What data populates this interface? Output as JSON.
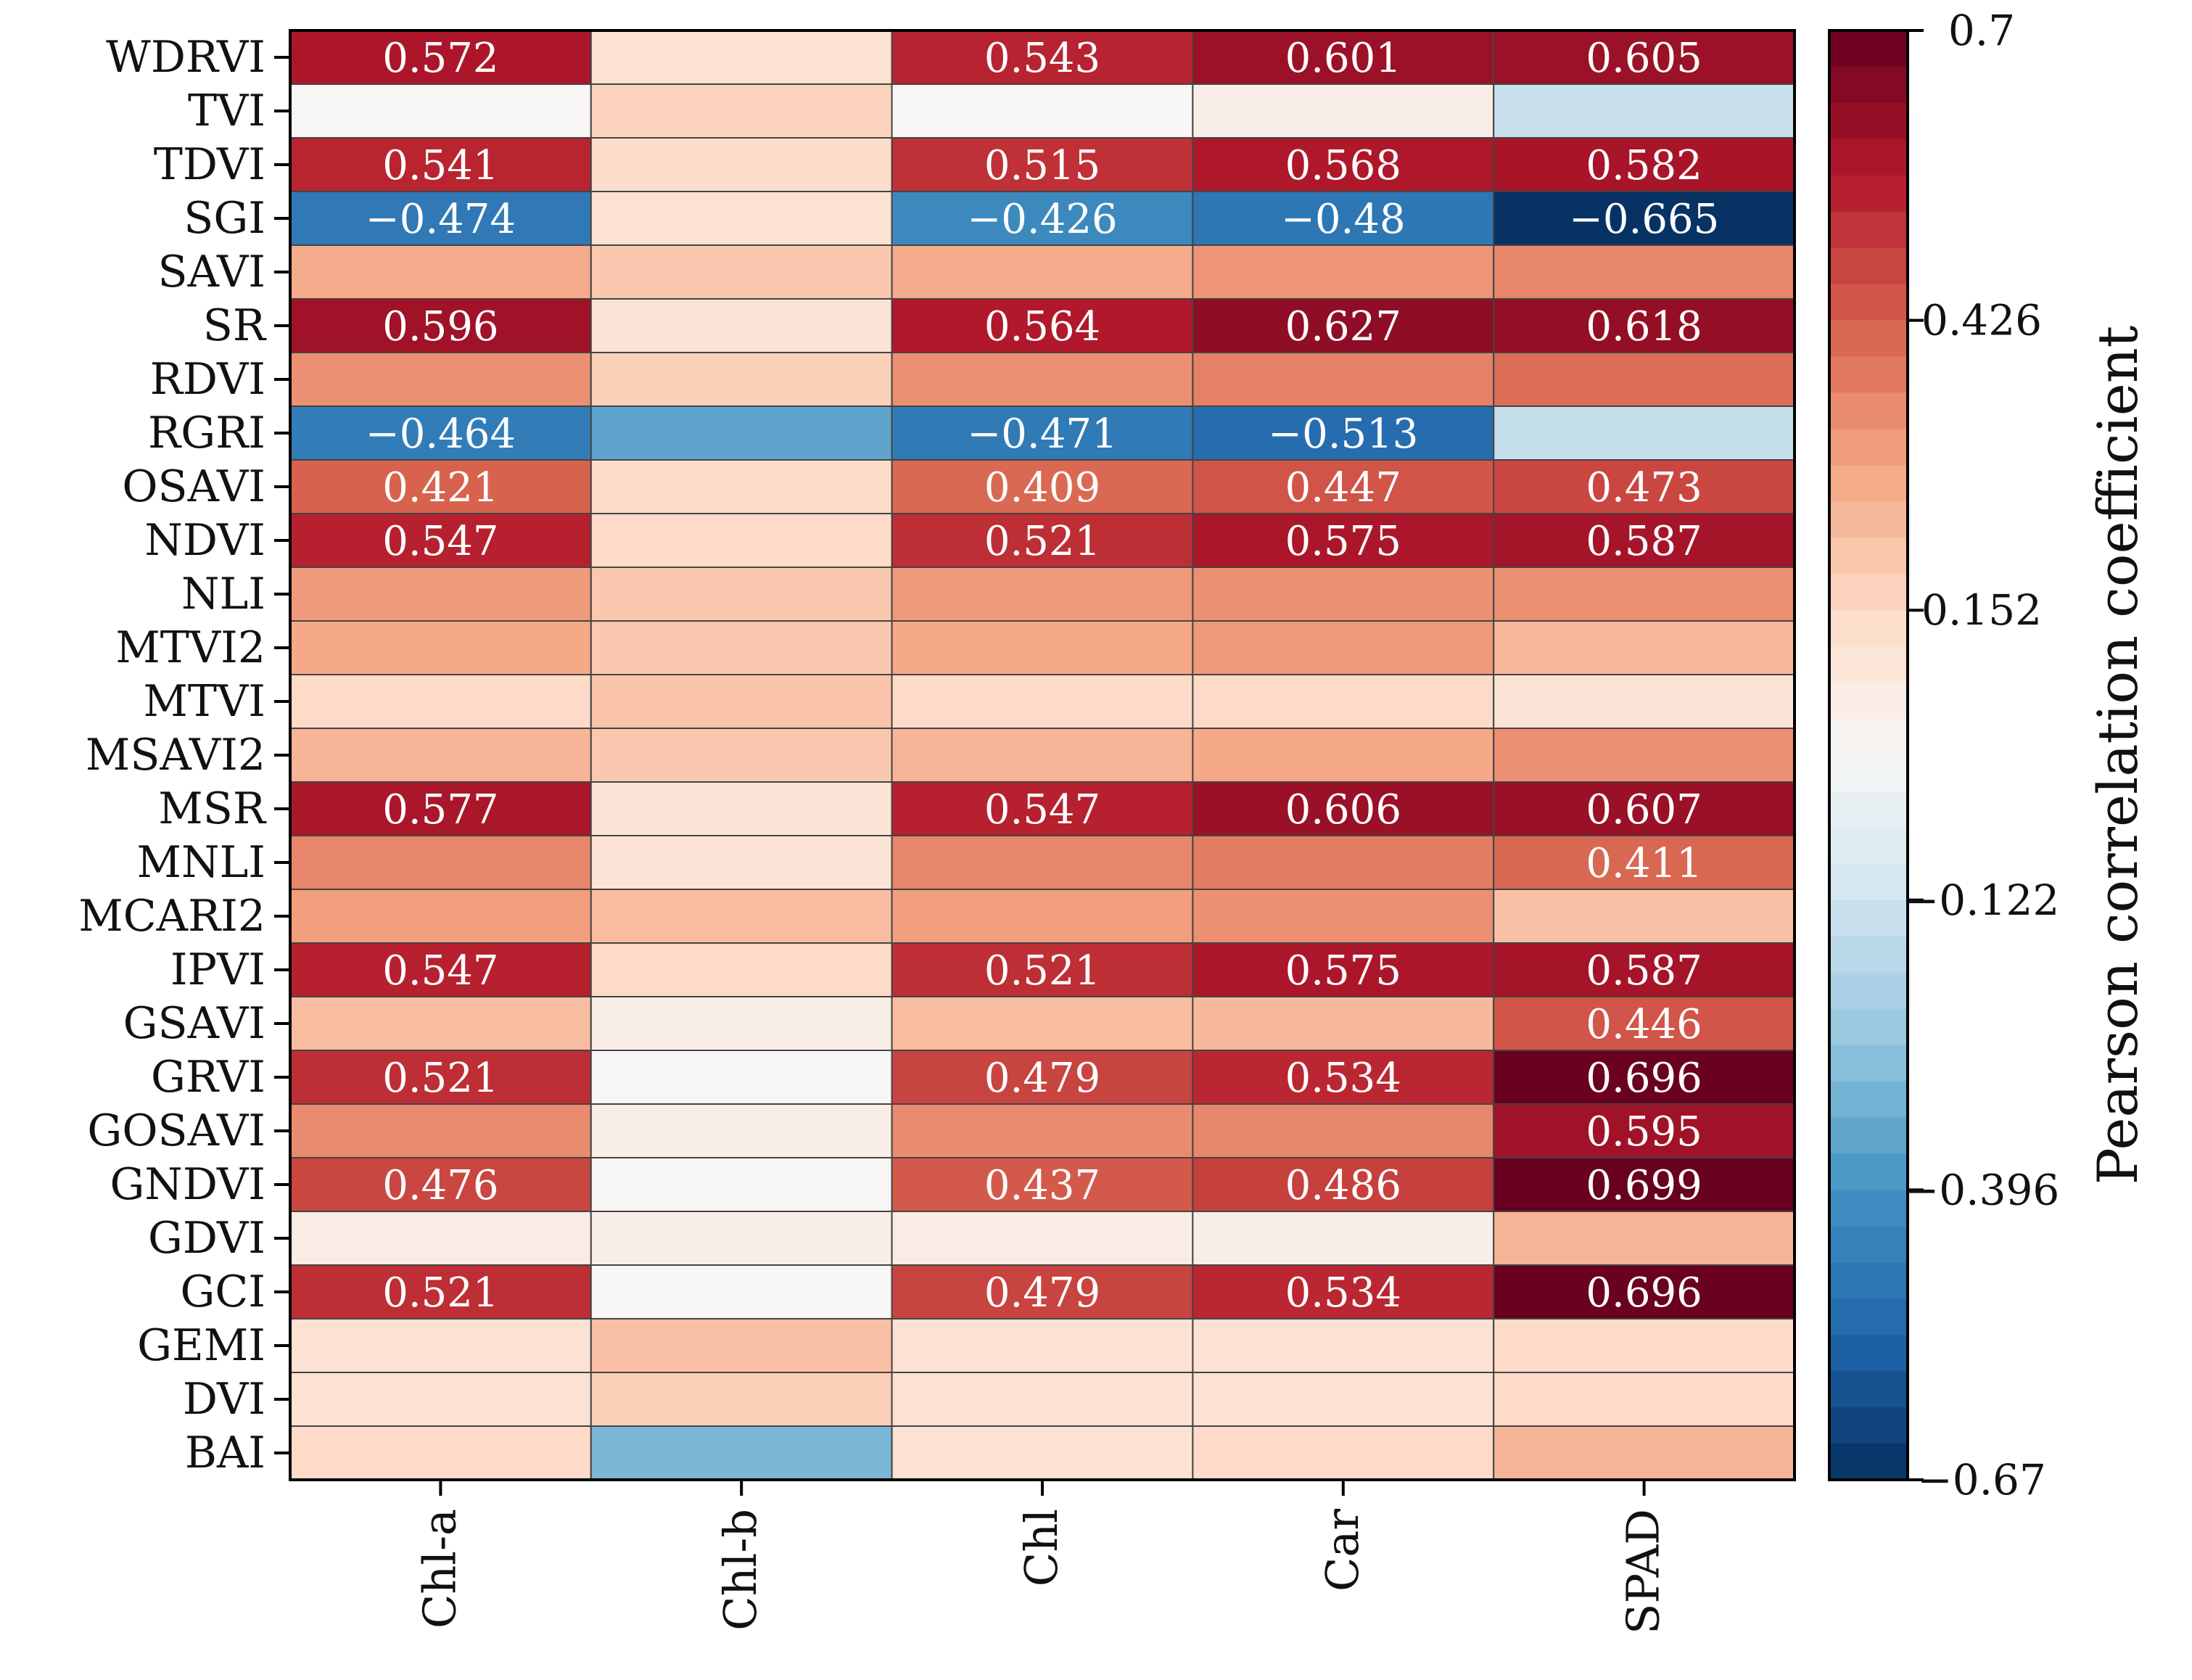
{
  "chart_data": {
    "type": "heatmap",
    "title": "",
    "x": [
      "Chl-a",
      "Chl-b",
      "Chl",
      "Car",
      "SPAD"
    ],
    "y": [
      "WDRVI",
      "TVI",
      "TDVI",
      "SGI",
      "SAVI",
      "SR",
      "RDVI",
      "RGRI",
      "OSAVI",
      "NDVI",
      "NLI",
      "MTVI2",
      "MTVI",
      "MSAVI2",
      "MSR",
      "MNLI",
      "MCARI2",
      "IPVI",
      "GSAVI",
      "GRVI",
      "GOSAVI",
      "GNDVI",
      "GDVI",
      "GCI",
      "GEMI",
      "DVI",
      "BAI"
    ],
    "values": [
      [
        0.572,
        0.12,
        0.543,
        0.601,
        0.605
      ],
      [
        0.02,
        0.17,
        0.02,
        0.06,
        -0.14
      ],
      [
        0.541,
        0.14,
        0.515,
        0.568,
        0.582
      ],
      [
        -0.474,
        0.12,
        -0.426,
        -0.48,
        -0.665
      ],
      [
        0.27,
        0.2,
        0.27,
        0.32,
        0.35
      ],
      [
        0.596,
        0.11,
        0.564,
        0.627,
        0.618
      ],
      [
        0.33,
        0.18,
        0.33,
        0.36,
        0.4
      ],
      [
        -0.464,
        -0.35,
        -0.471,
        -0.513,
        -0.15
      ],
      [
        0.421,
        0.14,
        0.409,
        0.447,
        0.473
      ],
      [
        0.547,
        0.15,
        0.521,
        0.575,
        0.587
      ],
      [
        0.31,
        0.2,
        0.31,
        0.33,
        0.33
      ],
      [
        0.28,
        0.2,
        0.28,
        0.31,
        0.24
      ],
      [
        0.15,
        0.21,
        0.15,
        0.15,
        0.11
      ],
      [
        0.25,
        0.2,
        0.25,
        0.28,
        0.33
      ],
      [
        0.577,
        0.11,
        0.547,
        0.606,
        0.607
      ],
      [
        0.35,
        0.11,
        0.35,
        0.37,
        0.411
      ],
      [
        0.3,
        0.23,
        0.3,
        0.33,
        0.22
      ],
      [
        0.547,
        0.15,
        0.521,
        0.575,
        0.587
      ],
      [
        0.23,
        0.06,
        0.23,
        0.24,
        0.446
      ],
      [
        0.521,
        0.02,
        0.479,
        0.534,
        0.696
      ],
      [
        0.34,
        0.06,
        0.34,
        0.35,
        0.595
      ],
      [
        0.476,
        0.02,
        0.437,
        0.486,
        0.699
      ],
      [
        0.07,
        0.06,
        0.07,
        0.06,
        0.25
      ],
      [
        0.521,
        0.02,
        0.479,
        0.534,
        0.696
      ],
      [
        0.12,
        0.22,
        0.12,
        0.12,
        0.15
      ],
      [
        0.12,
        0.18,
        0.12,
        0.12,
        0.15
      ],
      [
        0.15,
        -0.3,
        0.12,
        0.15,
        0.25
      ]
    ],
    "labels": [
      [
        "0.572",
        "",
        "0.543",
        "0.601",
        "0.605"
      ],
      [
        "",
        "",
        "",
        "",
        ""
      ],
      [
        "0.541",
        "",
        "0.515",
        "0.568",
        "0.582"
      ],
      [
        "−0.474",
        "",
        "−0.426",
        "−0.48",
        "−0.665"
      ],
      [
        "",
        "",
        "",
        "",
        ""
      ],
      [
        "0.596",
        "",
        "0.564",
        "0.627",
        "0.618"
      ],
      [
        "",
        "",
        "",
        "",
        ""
      ],
      [
        "−0.464",
        "",
        "−0.471",
        "−0.513",
        ""
      ],
      [
        "0.421",
        "",
        "0.409",
        "0.447",
        "0.473"
      ],
      [
        "0.547",
        "",
        "0.521",
        "0.575",
        "0.587"
      ],
      [
        "",
        "",
        "",
        "",
        ""
      ],
      [
        "",
        "",
        "",
        "",
        ""
      ],
      [
        "",
        "",
        "",
        "",
        ""
      ],
      [
        "",
        "",
        "",
        "",
        ""
      ],
      [
        "0.577",
        "",
        "0.547",
        "0.606",
        "0.607"
      ],
      [
        "",
        "",
        "",
        "",
        "0.411"
      ],
      [
        "",
        "",
        "",
        "",
        ""
      ],
      [
        "0.547",
        "",
        "0.521",
        "0.575",
        "0.587"
      ],
      [
        "",
        "",
        "",
        "",
        "0.446"
      ],
      [
        "0.521",
        "",
        "0.479",
        "0.534",
        "0.696"
      ],
      [
        "",
        "",
        "",
        "",
        "0.595"
      ],
      [
        "0.476",
        "",
        "0.437",
        "0.486",
        "0.699"
      ],
      [
        "",
        "",
        "",
        "",
        ""
      ],
      [
        "0.521",
        "",
        "0.479",
        "0.534",
        "0.696"
      ],
      [
        "",
        "",
        "",
        "",
        ""
      ],
      [
        "",
        "",
        "",
        "",
        ""
      ],
      [
        "",
        "",
        "",
        "",
        ""
      ]
    ],
    "colorbar": {
      "label": "Pearson correlation coefficient",
      "min": -0.67,
      "max": 0.7,
      "ticks": [
        0.7,
        0.426,
        0.152,
        -0.122,
        -0.396,
        -0.67
      ],
      "tick_labels": [
        "0.7",
        "0.426",
        "0.152",
        "−0.122",
        "−0.396",
        "−0.67"
      ],
      "placement": "right",
      "colormap": "RdBu_r"
    }
  }
}
